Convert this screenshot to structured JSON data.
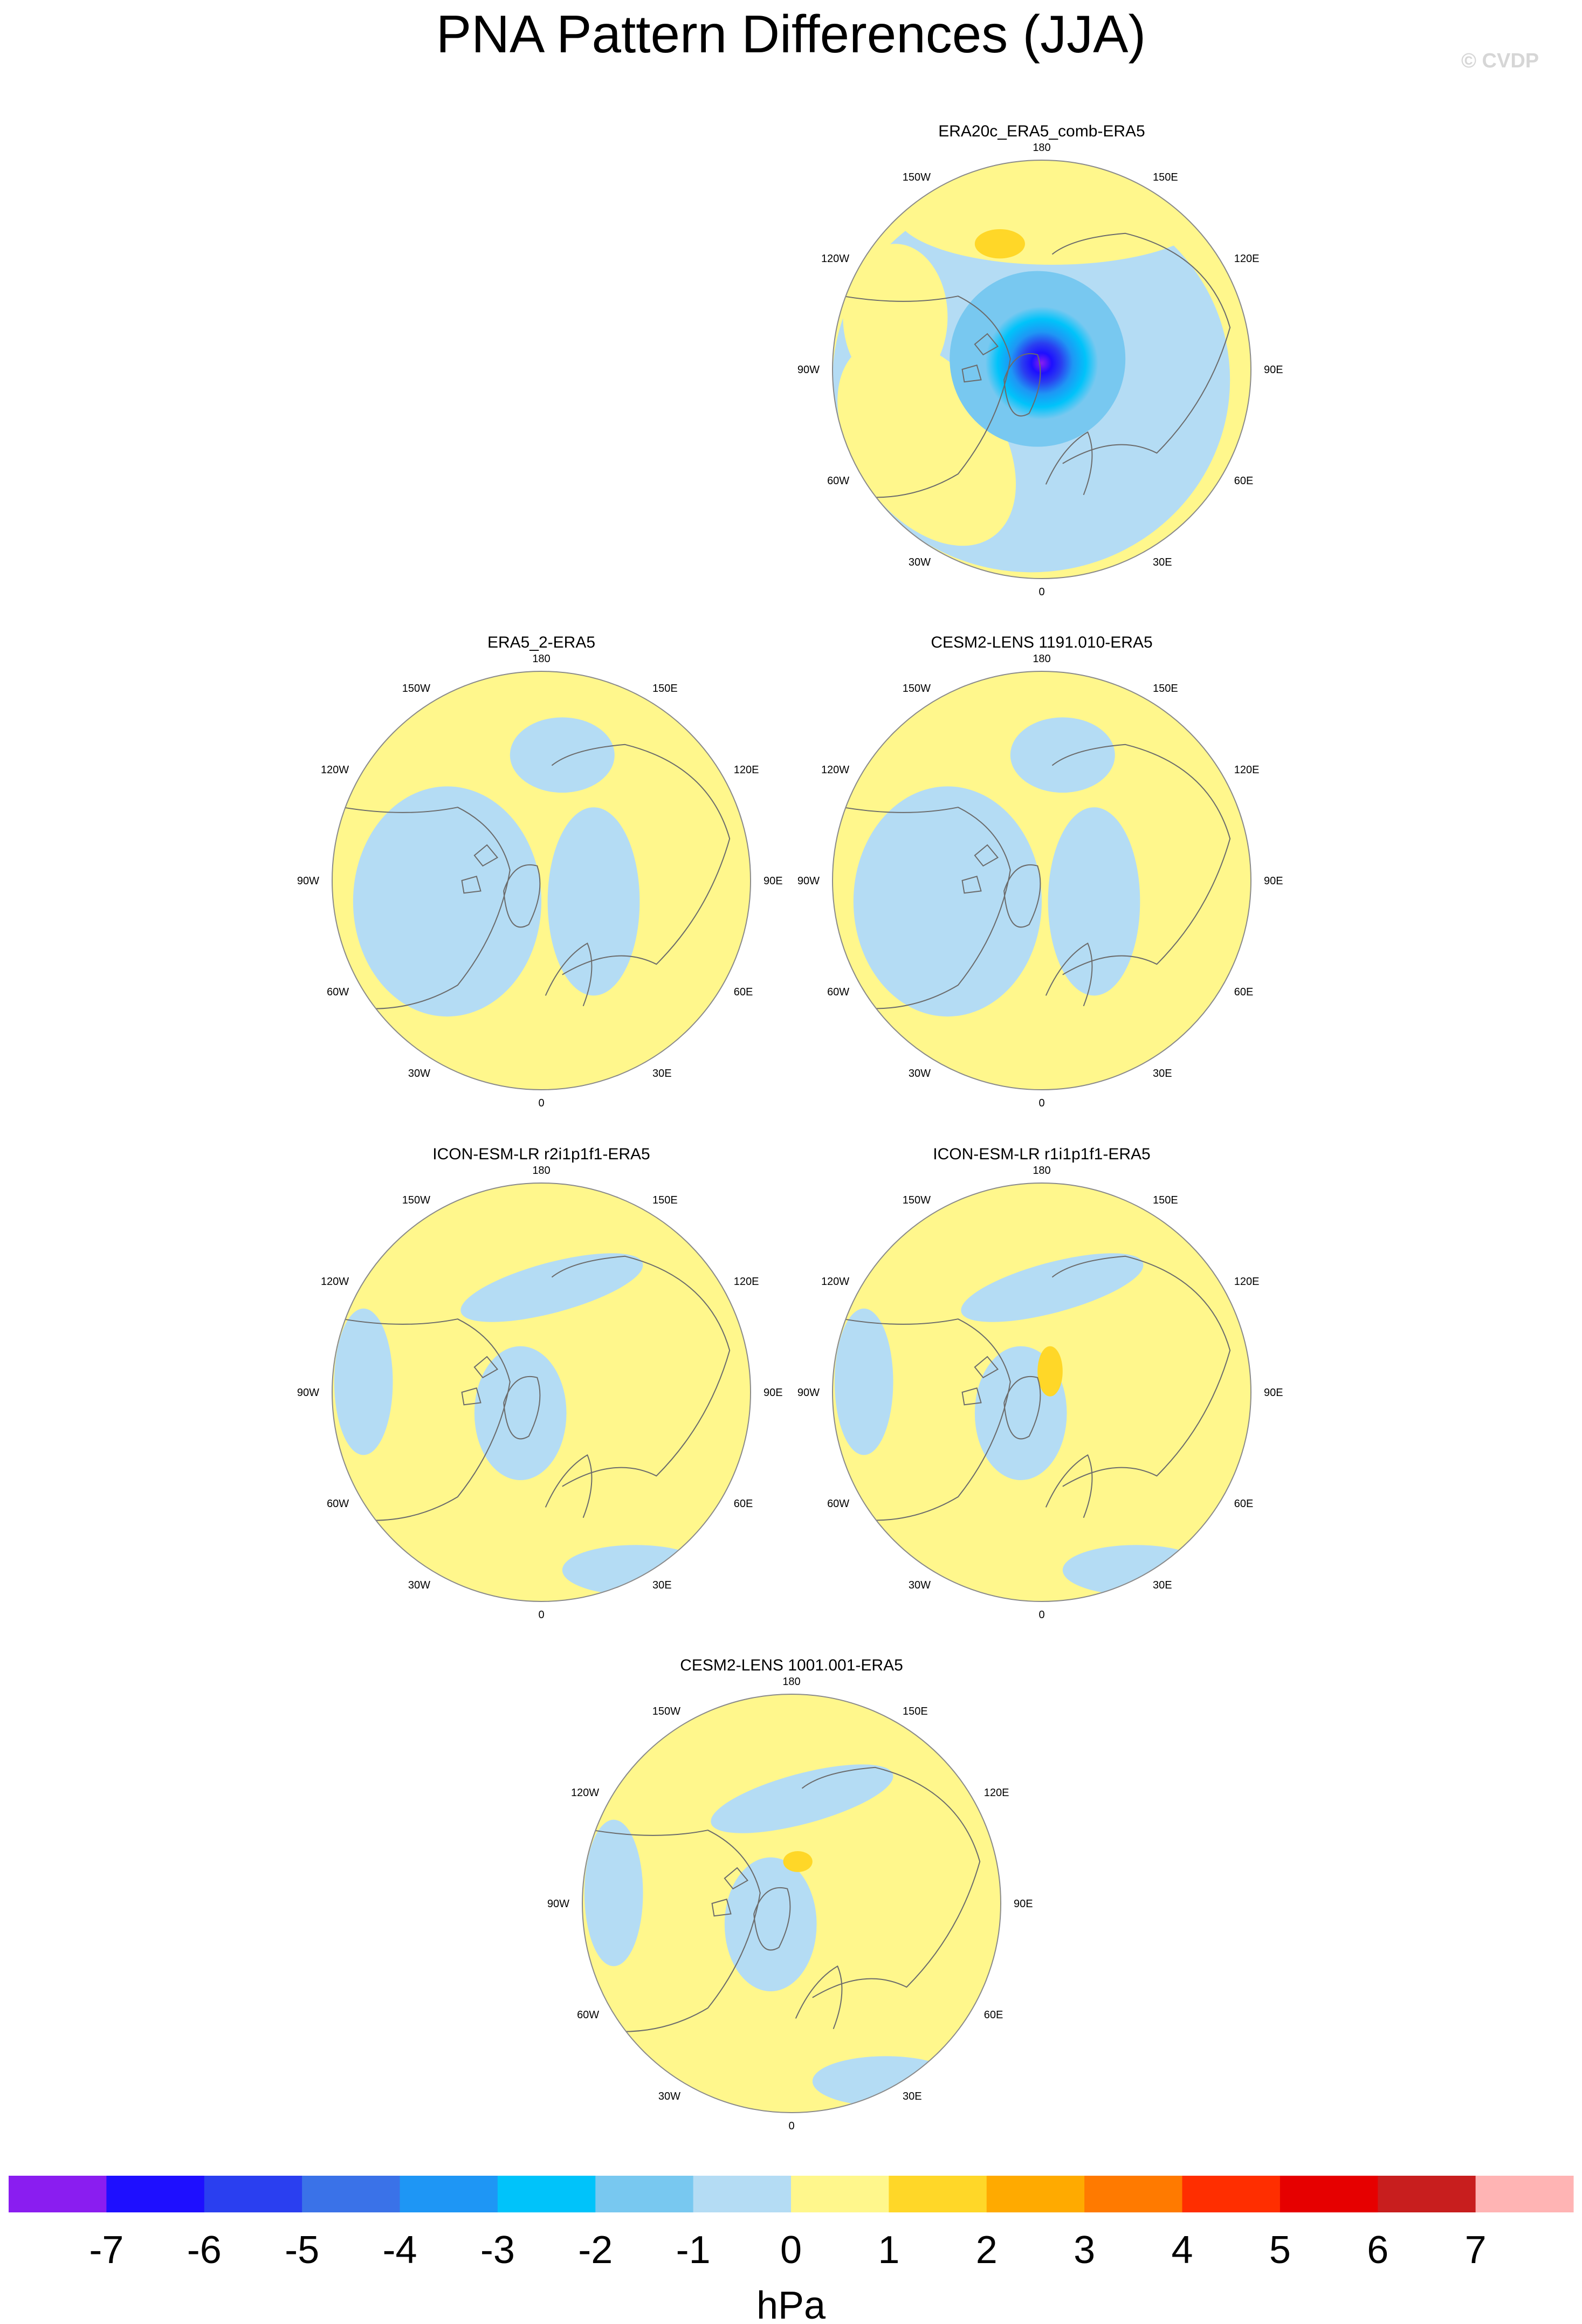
{
  "figure": {
    "title": "PNA Pattern Differences (JJA)",
    "watermark": "© CVDP",
    "projection": "north-polar-stereographic",
    "longitude_labels": [
      "180",
      "150E",
      "120E",
      "90E",
      "60E",
      "30E",
      "0",
      "30W",
      "60W",
      "90W",
      "120W",
      "150W"
    ]
  },
  "panels": [
    {
      "title": "ERA20c_ERA5_comb-ERA5",
      "pattern": "strong-negative-pole"
    },
    {
      "title": "ERA5_2-ERA5",
      "pattern": "mixed"
    },
    {
      "title": "CESM2-LENS 1191.010-ERA5",
      "pattern": "mixed"
    },
    {
      "title": "ICON-ESM-LR r2i1p1f1-ERA5",
      "pattern": "mostly-positive"
    },
    {
      "title": "ICON-ESM-LR r1i1p1f1-ERA5",
      "pattern": "mostly-positive"
    },
    {
      "title": "CESM2-LENS 1001.001-ERA5",
      "pattern": "mostly-positive"
    }
  ],
  "colorbar": {
    "unit": "hPa",
    "tick_labels": [
      "-7",
      "-6",
      "-5",
      "-4",
      "-3",
      "-2",
      "-1",
      "0",
      "1",
      "2",
      "3",
      "4",
      "5",
      "6",
      "7"
    ],
    "colors": [
      "#8a1df0",
      "#1e0fff",
      "#2a3ff0",
      "#3a72e8",
      "#1e96f5",
      "#00c3fa",
      "#78c8f0",
      "#b4dcf4",
      "#fff78c",
      "#ffd728",
      "#ffaa00",
      "#ff7a00",
      "#ff2e00",
      "#e60000",
      "#c81e1e",
      "#ffb4b4"
    ]
  }
}
